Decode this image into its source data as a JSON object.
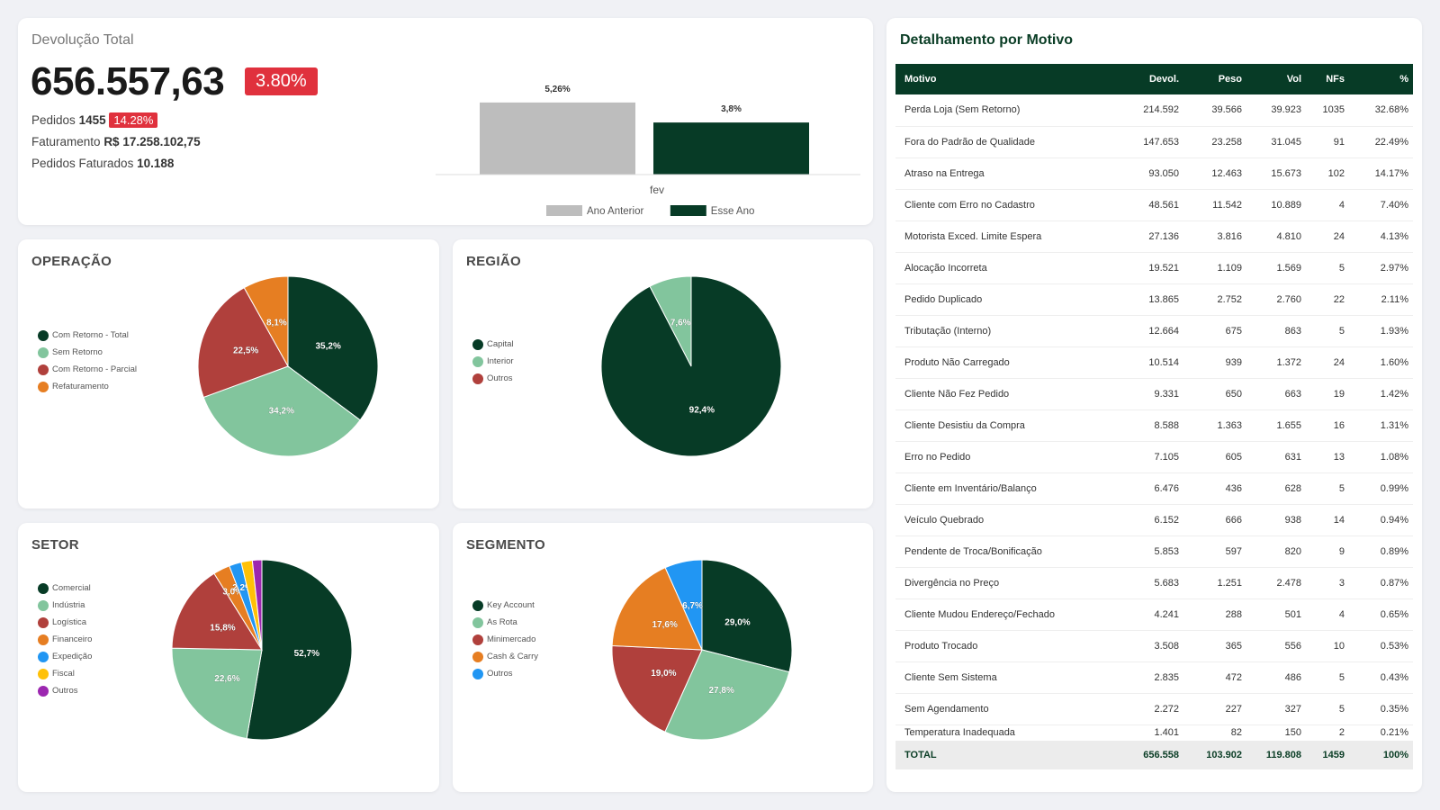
{
  "kpi": {
    "title": "Devolução Total",
    "value": "656.557,63",
    "badge": "3.80%",
    "pedidos_label": "Pedidos",
    "pedidos_value": "1455",
    "pedidos_badge": "14.28%",
    "faturamento_label": "Faturamento",
    "faturamento_value": "R$ 17.258.102,75",
    "pedidos_faturados_label": "Pedidos Faturados",
    "pedidos_faturados_value": "10.188"
  },
  "colors": {
    "dark_green": "#073b26",
    "light_green": "#82c59d",
    "red": "#b0403c",
    "orange": "#e67e22",
    "blue": "#2196f3",
    "yellow": "#ffc107",
    "purple": "#9c27b0",
    "gray": "#bdbdbd",
    "badge_red": "#e0313d"
  },
  "chart_data": [
    {
      "id": "comparison",
      "type": "bar",
      "categories": [
        "fev"
      ],
      "series": [
        {
          "name": "Ano Anterior",
          "values": [
            5.26
          ],
          "labels": [
            "5,26%"
          ],
          "color": "#bdbdbd"
        },
        {
          "name": "Esse Ano",
          "values": [
            3.8
          ],
          "labels": [
            "3,8%"
          ],
          "color": "#073b26"
        }
      ],
      "ylim": [
        0,
        6.5
      ]
    },
    {
      "id": "operacao",
      "type": "pie",
      "title": "OPERAÇÃO",
      "slices": [
        {
          "name": "Com Retorno - Total",
          "value": 35.2,
          "label": "35,2%",
          "color": "#073b26"
        },
        {
          "name": "Sem Retorno",
          "value": 34.2,
          "label": "34,2%",
          "color": "#82c59d"
        },
        {
          "name": "Com Retorno - Parcial",
          "value": 22.5,
          "label": "22,5%",
          "color": "#b0403c"
        },
        {
          "name": "Refaturamento",
          "value": 8.1,
          "label": "8,1%",
          "color": "#e67e22"
        }
      ]
    },
    {
      "id": "regiao",
      "type": "pie",
      "title": "REGIÃO",
      "slices": [
        {
          "name": "Capital",
          "value": 92.4,
          "label": "92,4%",
          "color": "#073b26"
        },
        {
          "name": "Interior",
          "value": 7.6,
          "label": "7,6%",
          "color": "#82c59d"
        },
        {
          "name": "Outros",
          "value": 0,
          "label": "",
          "color": "#b0403c"
        }
      ]
    },
    {
      "id": "setor",
      "type": "pie",
      "title": "SETOR",
      "slices": [
        {
          "name": "Comercial",
          "value": 52.7,
          "label": "52,7%",
          "color": "#073b26"
        },
        {
          "name": "Indústria",
          "value": 22.6,
          "label": "22,6%",
          "color": "#82c59d"
        },
        {
          "name": "Logística",
          "value": 15.8,
          "label": "15,8%",
          "color": "#b0403c"
        },
        {
          "name": "Financeiro",
          "value": 3.0,
          "label": "3,0%",
          "color": "#e67e22"
        },
        {
          "name": "Expedição",
          "value": 2.2,
          "label": "2,2%",
          "color": "#2196f3"
        },
        {
          "name": "Fiscal",
          "value": 2.0,
          "label": "",
          "color": "#ffc107"
        },
        {
          "name": "Outros",
          "value": 1.7,
          "label": "",
          "color": "#9c27b0"
        }
      ]
    },
    {
      "id": "segmento",
      "type": "pie",
      "title": "SEGMENTO",
      "slices": [
        {
          "name": "Key Account",
          "value": 29.0,
          "label": "29,0%",
          "color": "#073b26"
        },
        {
          "name": "As Rota",
          "value": 27.8,
          "label": "27,8%",
          "color": "#82c59d"
        },
        {
          "name": "Minimercado",
          "value": 19.0,
          "label": "19,0%",
          "color": "#b0403c"
        },
        {
          "name": "Cash & Carry",
          "value": 17.6,
          "label": "17,6%",
          "color": "#e67e22"
        },
        {
          "name": "Outros",
          "value": 6.7,
          "label": "6,7%",
          "color": "#2196f3"
        }
      ]
    }
  ],
  "table": {
    "title": "Detalhamento por Motivo",
    "headers": [
      "Motivo",
      "Devol.",
      "Peso",
      "Vol",
      "NFs",
      "%"
    ],
    "rows": [
      [
        "Perda Loja (Sem Retorno)",
        "214.592",
        "39.566",
        "39.923",
        "1035",
        "32.68%"
      ],
      [
        "Fora do Padrão de Qualidade",
        "147.653",
        "23.258",
        "31.045",
        "91",
        "22.49%"
      ],
      [
        "Atraso na Entrega",
        "93.050",
        "12.463",
        "15.673",
        "102",
        "14.17%"
      ],
      [
        "Cliente com Erro no Cadastro",
        "48.561",
        "11.542",
        "10.889",
        "4",
        "7.40%"
      ],
      [
        "Motorista Exced. Limite Espera",
        "27.136",
        "3.816",
        "4.810",
        "24",
        "4.13%"
      ],
      [
        "Alocação Incorreta",
        "19.521",
        "1.109",
        "1.569",
        "5",
        "2.97%"
      ],
      [
        "Pedido Duplicado",
        "13.865",
        "2.752",
        "2.760",
        "22",
        "2.11%"
      ],
      [
        "Tributação (Interno)",
        "12.664",
        "675",
        "863",
        "5",
        "1.93%"
      ],
      [
        "Produto Não Carregado",
        "10.514",
        "939",
        "1.372",
        "24",
        "1.60%"
      ],
      [
        "Cliente Não Fez Pedido",
        "9.331",
        "650",
        "663",
        "19",
        "1.42%"
      ],
      [
        "Cliente Desistiu da Compra",
        "8.588",
        "1.363",
        "1.655",
        "16",
        "1.31%"
      ],
      [
        "Erro no Pedido",
        "7.105",
        "605",
        "631",
        "13",
        "1.08%"
      ],
      [
        "Cliente em Inventário/Balanço",
        "6.476",
        "436",
        "628",
        "5",
        "0.99%"
      ],
      [
        "Veículo Quebrado",
        "6.152",
        "666",
        "938",
        "14",
        "0.94%"
      ],
      [
        "Pendente de Troca/Bonificação",
        "5.853",
        "597",
        "820",
        "9",
        "0.89%"
      ],
      [
        "Divergência no Preço",
        "5.683",
        "1.251",
        "2.478",
        "3",
        "0.87%"
      ],
      [
        "Cliente Mudou Endereço/Fechado",
        "4.241",
        "288",
        "501",
        "4",
        "0.65%"
      ],
      [
        "Produto Trocado",
        "3.508",
        "365",
        "556",
        "10",
        "0.53%"
      ],
      [
        "Cliente Sem Sistema",
        "2.835",
        "472",
        "486",
        "5",
        "0.43%"
      ],
      [
        "Sem Agendamento",
        "2.272",
        "227",
        "327",
        "5",
        "0.35%"
      ],
      [
        "Temperatura Inadequada",
        "1.401",
        "82",
        "150",
        "2",
        "0.21%"
      ]
    ],
    "total": [
      "TOTAL",
      "656.558",
      "103.902",
      "119.808",
      "1459",
      "100%"
    ]
  }
}
